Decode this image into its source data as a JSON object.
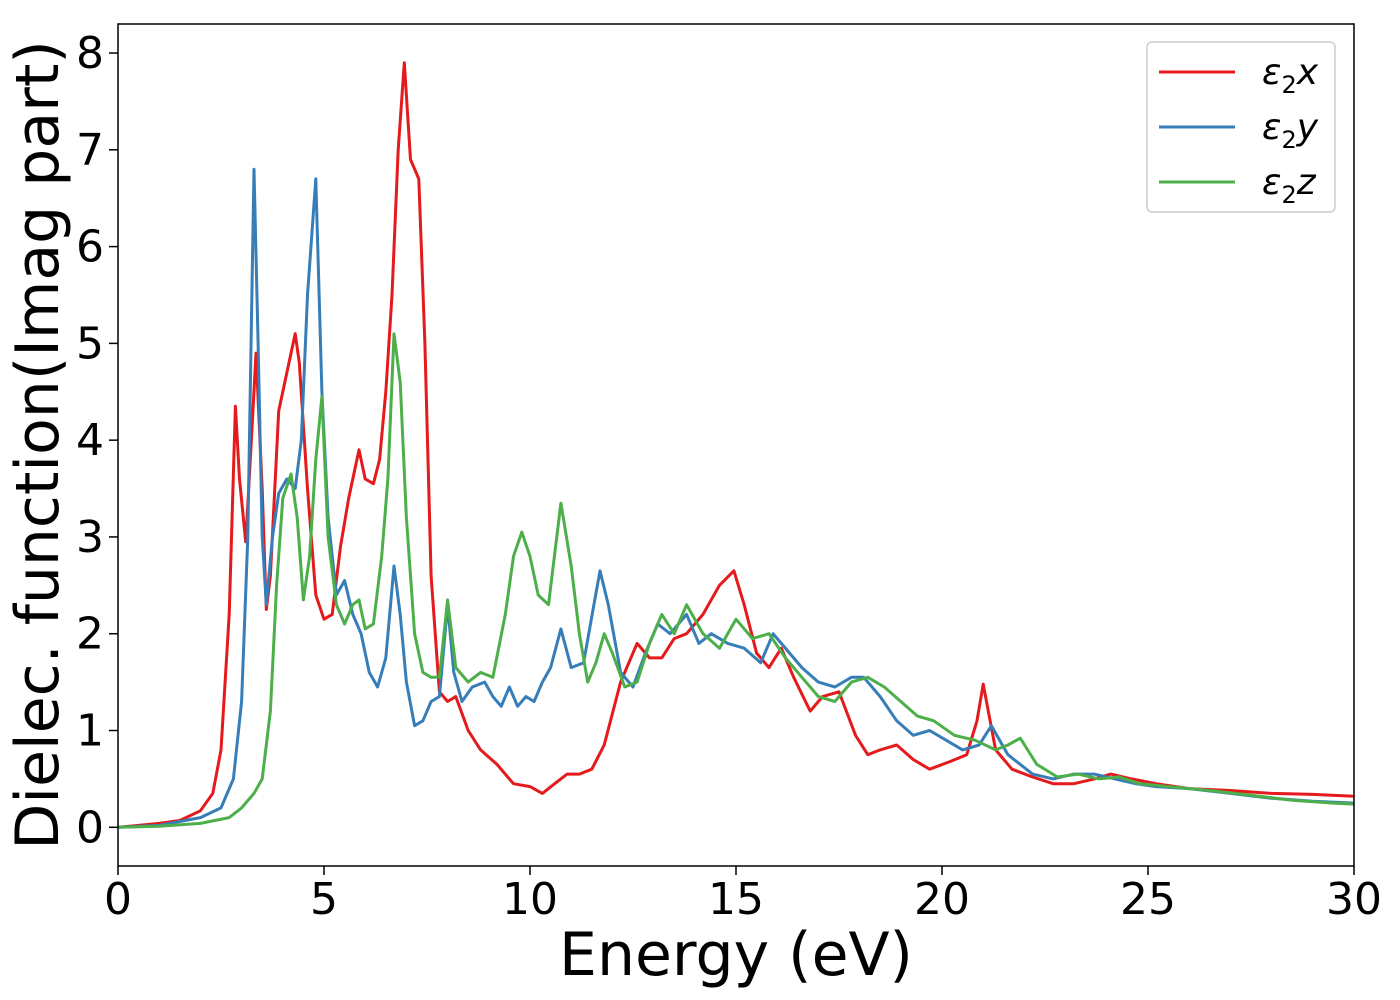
{
  "chart_data": {
    "type": "line",
    "title": "",
    "xlabel": "Energy (eV)",
    "ylabel": "Dielec. function(Imag part)",
    "xlim": [
      0,
      30
    ],
    "ylim": [
      -0.4,
      8.3
    ],
    "xticks": [
      0,
      5,
      10,
      15,
      20,
      25,
      30
    ],
    "yticks": [
      0,
      1,
      2,
      3,
      4,
      5,
      6,
      7,
      8
    ],
    "grid": false,
    "legend": "top-right",
    "series": [
      {
        "name": "ε₂x",
        "label_main": "ε",
        "label_sub": "2",
        "label_axis": "x",
        "color": "#e41a1c",
        "x": [
          0,
          1,
          1.5,
          2,
          2.3,
          2.5,
          2.7,
          2.85,
          2.95,
          3.1,
          3.25,
          3.35,
          3.5,
          3.6,
          3.7,
          3.9,
          4.1,
          4.3,
          4.4,
          4.6,
          4.8,
          5.0,
          5.2,
          5.4,
          5.6,
          5.7,
          5.85,
          6.0,
          6.2,
          6.35,
          6.5,
          6.65,
          6.8,
          6.95,
          7.1,
          7.3,
          7.45,
          7.6,
          7.8,
          8.0,
          8.2,
          8.5,
          8.8,
          9.2,
          9.6,
          10.0,
          10.3,
          10.6,
          10.9,
          11.2,
          11.5,
          11.8,
          12.2,
          12.6,
          12.9,
          13.2,
          13.5,
          13.8,
          14.2,
          14.6,
          14.95,
          15.2,
          15.5,
          15.8,
          16.1,
          16.4,
          16.8,
          17.1,
          17.5,
          17.9,
          18.2,
          18.5,
          18.9,
          19.3,
          19.7,
          20.2,
          20.6,
          20.85,
          21.0,
          21.3,
          21.7,
          22.2,
          22.7,
          23.2,
          23.7,
          24.1,
          24.6,
          25.2,
          26,
          27,
          28,
          29,
          30
        ],
        "y": [
          0,
          0.04,
          0.07,
          0.17,
          0.35,
          0.8,
          2.2,
          4.35,
          3.6,
          2.95,
          4.1,
          4.9,
          3.5,
          2.25,
          2.6,
          4.3,
          4.7,
          5.1,
          4.8,
          3.5,
          2.4,
          2.15,
          2.2,
          2.9,
          3.4,
          3.6,
          3.9,
          3.6,
          3.55,
          3.8,
          4.5,
          5.5,
          7.0,
          7.9,
          6.9,
          6.7,
          5.0,
          2.6,
          1.4,
          1.3,
          1.35,
          1.0,
          0.8,
          0.65,
          0.45,
          0.42,
          0.35,
          0.45,
          0.55,
          0.55,
          0.6,
          0.85,
          1.5,
          1.9,
          1.75,
          1.75,
          1.95,
          2.0,
          2.2,
          2.5,
          2.65,
          2.3,
          1.8,
          1.65,
          1.85,
          1.55,
          1.2,
          1.35,
          1.4,
          0.95,
          0.75,
          0.8,
          0.85,
          0.7,
          0.6,
          0.68,
          0.75,
          1.1,
          1.48,
          0.8,
          0.6,
          0.52,
          0.45,
          0.45,
          0.5,
          0.55,
          0.5,
          0.45,
          0.4,
          0.38,
          0.35,
          0.34,
          0.32
        ]
      },
      {
        "name": "ε₂y",
        "label_main": "ε",
        "label_sub": "2",
        "label_axis": "y",
        "color": "#377eb8",
        "x": [
          0,
          1,
          2,
          2.5,
          2.8,
          3.0,
          3.15,
          3.3,
          3.4,
          3.5,
          3.6,
          3.75,
          3.9,
          4.1,
          4.3,
          4.45,
          4.6,
          4.8,
          4.95,
          5.1,
          5.3,
          5.5,
          5.7,
          5.9,
          6.1,
          6.3,
          6.5,
          6.7,
          6.85,
          7.0,
          7.2,
          7.4,
          7.6,
          7.8,
          8.0,
          8.15,
          8.35,
          8.6,
          8.9,
          9.1,
          9.3,
          9.5,
          9.7,
          9.9,
          10.1,
          10.3,
          10.5,
          10.75,
          11.0,
          11.3,
          11.55,
          11.7,
          11.9,
          12.2,
          12.5,
          12.8,
          13.1,
          13.4,
          13.8,
          14.1,
          14.4,
          14.8,
          15.2,
          15.6,
          15.9,
          16.3,
          16.6,
          17.0,
          17.4,
          17.8,
          18.1,
          18.5,
          18.9,
          19.3,
          19.7,
          20.1,
          20.5,
          20.9,
          21.2,
          21.6,
          22.2,
          22.7,
          23.2,
          23.7,
          24.2,
          24.7,
          25.2,
          26,
          27,
          28,
          29,
          30
        ],
        "y": [
          0,
          0.02,
          0.1,
          0.2,
          0.5,
          1.3,
          3.0,
          6.8,
          5.0,
          3.0,
          2.3,
          3.0,
          3.45,
          3.6,
          3.5,
          4.0,
          5.5,
          6.7,
          4.5,
          3.2,
          2.4,
          2.55,
          2.2,
          2.0,
          1.6,
          1.45,
          1.75,
          2.7,
          2.2,
          1.5,
          1.05,
          1.1,
          1.3,
          1.35,
          2.3,
          1.6,
          1.3,
          1.45,
          1.5,
          1.35,
          1.25,
          1.45,
          1.25,
          1.35,
          1.3,
          1.5,
          1.65,
          2.05,
          1.65,
          1.7,
          2.3,
          2.65,
          2.3,
          1.6,
          1.45,
          1.8,
          2.1,
          2.0,
          2.2,
          1.9,
          2.0,
          1.9,
          1.85,
          1.7,
          2.0,
          1.8,
          1.65,
          1.5,
          1.45,
          1.55,
          1.55,
          1.35,
          1.1,
          0.95,
          1.0,
          0.9,
          0.8,
          0.85,
          1.05,
          0.75,
          0.55,
          0.5,
          0.55,
          0.55,
          0.5,
          0.45,
          0.42,
          0.4,
          0.35,
          0.3,
          0.27,
          0.25
        ]
      },
      {
        "name": "ε₂z",
        "label_main": "ε",
        "label_sub": "2",
        "label_axis": "z",
        "color": "#4daf4a",
        "x": [
          0,
          1,
          2,
          2.7,
          3.0,
          3.3,
          3.5,
          3.7,
          3.85,
          4.0,
          4.2,
          4.35,
          4.5,
          4.65,
          4.8,
          4.95,
          5.1,
          5.3,
          5.5,
          5.7,
          5.85,
          6.0,
          6.2,
          6.4,
          6.55,
          6.7,
          6.85,
          7.0,
          7.2,
          7.4,
          7.6,
          7.8,
          8.0,
          8.2,
          8.5,
          8.8,
          9.1,
          9.4,
          9.6,
          9.8,
          10.0,
          10.2,
          10.45,
          10.75,
          11.0,
          11.2,
          11.4,
          11.6,
          11.8,
          12.0,
          12.3,
          12.6,
          12.9,
          13.2,
          13.5,
          13.8,
          14.2,
          14.6,
          15.0,
          15.4,
          15.8,
          16.2,
          16.6,
          17.0,
          17.4,
          17.8,
          18.2,
          18.6,
          19.0,
          19.4,
          19.8,
          20.3,
          20.8,
          21.3,
          21.6,
          21.9,
          22.3,
          22.8,
          23.3,
          23.8,
          24.3,
          24.8,
          25.5,
          26.5,
          27.5,
          28.5,
          29.5,
          30
        ],
        "y": [
          0,
          0.01,
          0.04,
          0.1,
          0.2,
          0.35,
          0.5,
          1.2,
          2.5,
          3.4,
          3.65,
          3.2,
          2.35,
          2.8,
          3.8,
          4.45,
          3.0,
          2.3,
          2.1,
          2.3,
          2.35,
          2.05,
          2.1,
          2.8,
          3.6,
          5.1,
          4.6,
          3.2,
          2.0,
          1.6,
          1.55,
          1.55,
          2.35,
          1.65,
          1.5,
          1.6,
          1.55,
          2.2,
          2.8,
          3.05,
          2.8,
          2.4,
          2.3,
          3.35,
          2.7,
          2.0,
          1.5,
          1.7,
          2.0,
          1.8,
          1.45,
          1.5,
          1.9,
          2.2,
          2.0,
          2.3,
          2.0,
          1.85,
          2.15,
          1.95,
          2.0,
          1.75,
          1.55,
          1.35,
          1.3,
          1.5,
          1.55,
          1.45,
          1.3,
          1.15,
          1.1,
          0.95,
          0.9,
          0.8,
          0.85,
          0.92,
          0.65,
          0.52,
          0.55,
          0.5,
          0.52,
          0.45,
          0.42,
          0.38,
          0.33,
          0.28,
          0.25,
          0.24
        ]
      }
    ]
  }
}
